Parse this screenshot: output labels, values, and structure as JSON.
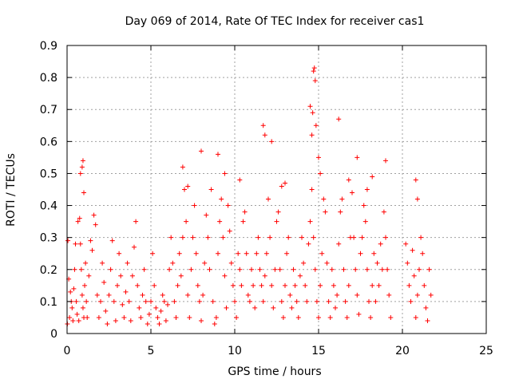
{
  "chart_data": {
    "type": "scatter",
    "title": "Day 069 of 2014, Rate Of TEC Index for receiver cas1",
    "xlabel": "GPS time / hours",
    "ylabel": "ROTI / TECUs",
    "xlim": [
      0,
      25
    ],
    "ylim": [
      0,
      0.9
    ],
    "x_ticks": [
      0,
      5,
      10,
      15,
      20,
      25
    ],
    "x_tick_labels": [
      "0",
      "5",
      "10",
      "15",
      "20",
      "25"
    ],
    "y_ticks": [
      0,
      0.1,
      0.2,
      0.3,
      0.4,
      0.5,
      0.6,
      0.7,
      0.8,
      0.9
    ],
    "y_tick_labels": [
      "0",
      "0.1",
      "0.2",
      "0.3",
      "0.4",
      "0.5",
      "0.6",
      "0.7",
      "0.8",
      "0.9"
    ],
    "grid": true,
    "marker": "plus",
    "color": "#ff0000",
    "series": [
      {
        "x": [
          0.02,
          0.05,
          0.1,
          0.15,
          0.2,
          0.25,
          0.3,
          0.35,
          0.4,
          0.45,
          0.5,
          0.55,
          0.6,
          0.65,
          0.7,
          0.75,
          0.8,
          0.85,
          0.9,
          0.95,
          1.0,
          1.05,
          1.1,
          1.15,
          1.2,
          1.3,
          1.4,
          1.5,
          1.6,
          1.7,
          1.8,
          1.9,
          2.0,
          2.1,
          2.2,
          2.3,
          2.4,
          2.5,
          2.6,
          2.7,
          2.8,
          2.9,
          3.0,
          3.1,
          3.2,
          3.3,
          3.4,
          3.5,
          3.6,
          3.7,
          3.8,
          3.9,
          4.0,
          4.1,
          4.2,
          4.3,
          4.4,
          4.5,
          4.6,
          4.7,
          4.8,
          4.9,
          5.0,
          5.1,
          5.2,
          5.3,
          5.4,
          5.5,
          5.6,
          5.7,
          5.8,
          5.9,
          6.0,
          6.1,
          6.2,
          6.3,
          6.4,
          6.5,
          6.6,
          6.7,
          6.8,
          6.9,
          7.0,
          7.1,
          7.2,
          7.3,
          7.4,
          7.5,
          7.6,
          7.7,
          7.8,
          7.9,
          8.0,
          8.1,
          8.2,
          8.3,
          8.4,
          8.5,
          8.6,
          8.7,
          8.8,
          8.9,
          9.0,
          9.1,
          9.2,
          9.3,
          9.4,
          9.5,
          9.6,
          9.7,
          9.8,
          9.9,
          10.0,
          10.1,
          10.2,
          10.3,
          10.4,
          10.5,
          10.6,
          10.7,
          10.8,
          10.9,
          11.0,
          11.1,
          11.2,
          11.3,
          11.4,
          11.5,
          11.6,
          11.7,
          11.8,
          11.9,
          12.0,
          12.1,
          12.2,
          12.3,
          12.4,
          12.5,
          12.6,
          12.7,
          12.8,
          12.9,
          13.0,
          13.1,
          13.2,
          13.3,
          13.4,
          13.5,
          13.6,
          13.7,
          13.8,
          13.9,
          14.0,
          14.1,
          14.2,
          14.3,
          14.4,
          14.5,
          14.6,
          14.7,
          14.8,
          14.9,
          15.0,
          15.1,
          15.2,
          15.3,
          15.4,
          15.5,
          15.6,
          15.7,
          15.8,
          15.9,
          16.0,
          16.1,
          16.2,
          16.3,
          16.4,
          16.5,
          16.6,
          16.7,
          16.8,
          16.9,
          17.0,
          17.1,
          17.2,
          17.3,
          17.4,
          17.5,
          17.6,
          17.7,
          17.8,
          17.9,
          18.0,
          18.1,
          18.2,
          18.3,
          18.4,
          18.5,
          18.6,
          18.7,
          18.8,
          18.9,
          19.0,
          19.1,
          19.2,
          19.3,
          20.2,
          20.3,
          20.4,
          20.5,
          20.6,
          20.7,
          20.8,
          20.9,
          21.0,
          21.1,
          21.2,
          21.3,
          21.4,
          21.5,
          21.6,
          21.7,
          0.8,
          0.9,
          0.95,
          1.0,
          8.0,
          9.0,
          11.7,
          11.8,
          12.2,
          13.0,
          14.5,
          14.6,
          14.65,
          14.7,
          14.75,
          14.8,
          14.85,
          15.0,
          15.1,
          16.2,
          17.3,
          18.2,
          19.0,
          20.8,
          20.9,
          6.9,
          7.2,
          9.4,
          10.3,
          12.8,
          16.8,
          17.9
        ],
        "y": [
          0.03,
          0.29,
          0.17,
          0.05,
          0.13,
          0.1,
          0.08,
          0.04,
          0.14,
          0.2,
          0.28,
          0.1,
          0.06,
          0.35,
          0.04,
          0.36,
          0.28,
          0.2,
          0.12,
          0.08,
          0.05,
          0.15,
          0.22,
          0.1,
          0.05,
          0.18,
          0.29,
          0.26,
          0.37,
          0.34,
          0.12,
          0.05,
          0.1,
          0.22,
          0.16,
          0.07,
          0.03,
          0.12,
          0.2,
          0.29,
          0.1,
          0.04,
          0.15,
          0.25,
          0.18,
          0.09,
          0.05,
          0.13,
          0.22,
          0.1,
          0.04,
          0.18,
          0.27,
          0.35,
          0.15,
          0.08,
          0.05,
          0.12,
          0.2,
          0.1,
          0.03,
          0.06,
          0.1,
          0.25,
          0.15,
          0.08,
          0.05,
          0.03,
          0.07,
          0.12,
          0.1,
          0.04,
          0.09,
          0.2,
          0.3,
          0.22,
          0.1,
          0.05,
          0.15,
          0.25,
          0.18,
          0.3,
          0.45,
          0.35,
          0.12,
          0.05,
          0.2,
          0.3,
          0.4,
          0.25,
          0.15,
          0.1,
          0.04,
          0.12,
          0.22,
          0.37,
          0.3,
          0.2,
          0.45,
          0.1,
          0.03,
          0.05,
          0.25,
          0.35,
          0.42,
          0.3,
          0.18,
          0.08,
          0.4,
          0.32,
          0.22,
          0.15,
          0.1,
          0.05,
          0.25,
          0.2,
          0.15,
          0.35,
          0.38,
          0.25,
          0.12,
          0.1,
          0.2,
          0.15,
          0.08,
          0.25,
          0.3,
          0.2,
          0.15,
          0.1,
          0.18,
          0.25,
          0.42,
          0.3,
          0.15,
          0.08,
          0.2,
          0.35,
          0.38,
          0.2,
          0.1,
          0.05,
          0.15,
          0.25,
          0.3,
          0.12,
          0.08,
          0.2,
          0.15,
          0.1,
          0.05,
          0.18,
          0.3,
          0.22,
          0.15,
          0.1,
          0.28,
          0.35,
          0.45,
          0.3,
          0.2,
          0.1,
          0.05,
          0.15,
          0.25,
          0.42,
          0.38,
          0.22,
          0.1,
          0.05,
          0.2,
          0.15,
          0.08,
          0.12,
          0.28,
          0.38,
          0.42,
          0.2,
          0.1,
          0.05,
          0.15,
          0.3,
          0.44,
          0.3,
          0.2,
          0.12,
          0.06,
          0.25,
          0.3,
          0.4,
          0.35,
          0.2,
          0.1,
          0.05,
          0.15,
          0.25,
          0.1,
          0.22,
          0.15,
          0.28,
          0.2,
          0.38,
          0.3,
          0.2,
          0.12,
          0.05,
          0.28,
          0.22,
          0.15,
          0.1,
          0.26,
          0.18,
          0.05,
          0.12,
          0.2,
          0.3,
          0.25,
          0.15,
          0.08,
          0.04,
          0.2,
          0.12,
          0.5,
          0.52,
          0.54,
          0.44,
          0.57,
          0.56,
          0.65,
          0.62,
          0.6,
          0.47,
          0.71,
          0.62,
          0.69,
          0.82,
          0.83,
          0.79,
          0.65,
          0.55,
          0.5,
          0.67,
          0.55,
          0.49,
          0.54,
          0.48,
          0.42,
          0.52,
          0.46,
          0.5,
          0.48,
          0.46,
          0.48,
          0.45
        ]
      }
    ]
  }
}
